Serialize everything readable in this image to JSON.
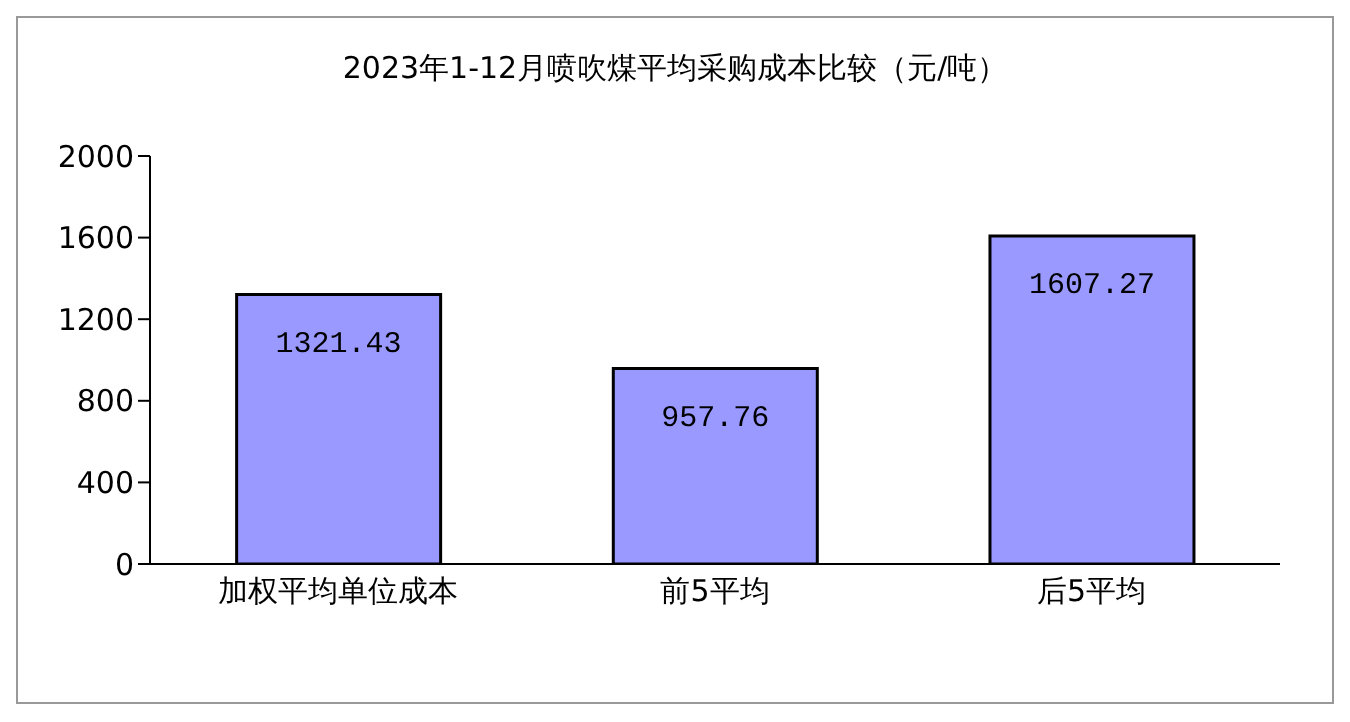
{
  "chart_data": {
    "type": "bar",
    "title": "2023年1-12月喷吹煤平均采购成本比较（元/吨）",
    "categories": [
      "加权平均单位成本",
      "前5平均",
      "后5平均"
    ],
    "values": [
      1321.43,
      957.76,
      1607.27
    ],
    "color": "#9999ff",
    "ylim": [
      0,
      2000
    ],
    "yticks": [
      0,
      400,
      800,
      1200,
      1600,
      2000
    ],
    "grid": false,
    "data_labels": true
  }
}
